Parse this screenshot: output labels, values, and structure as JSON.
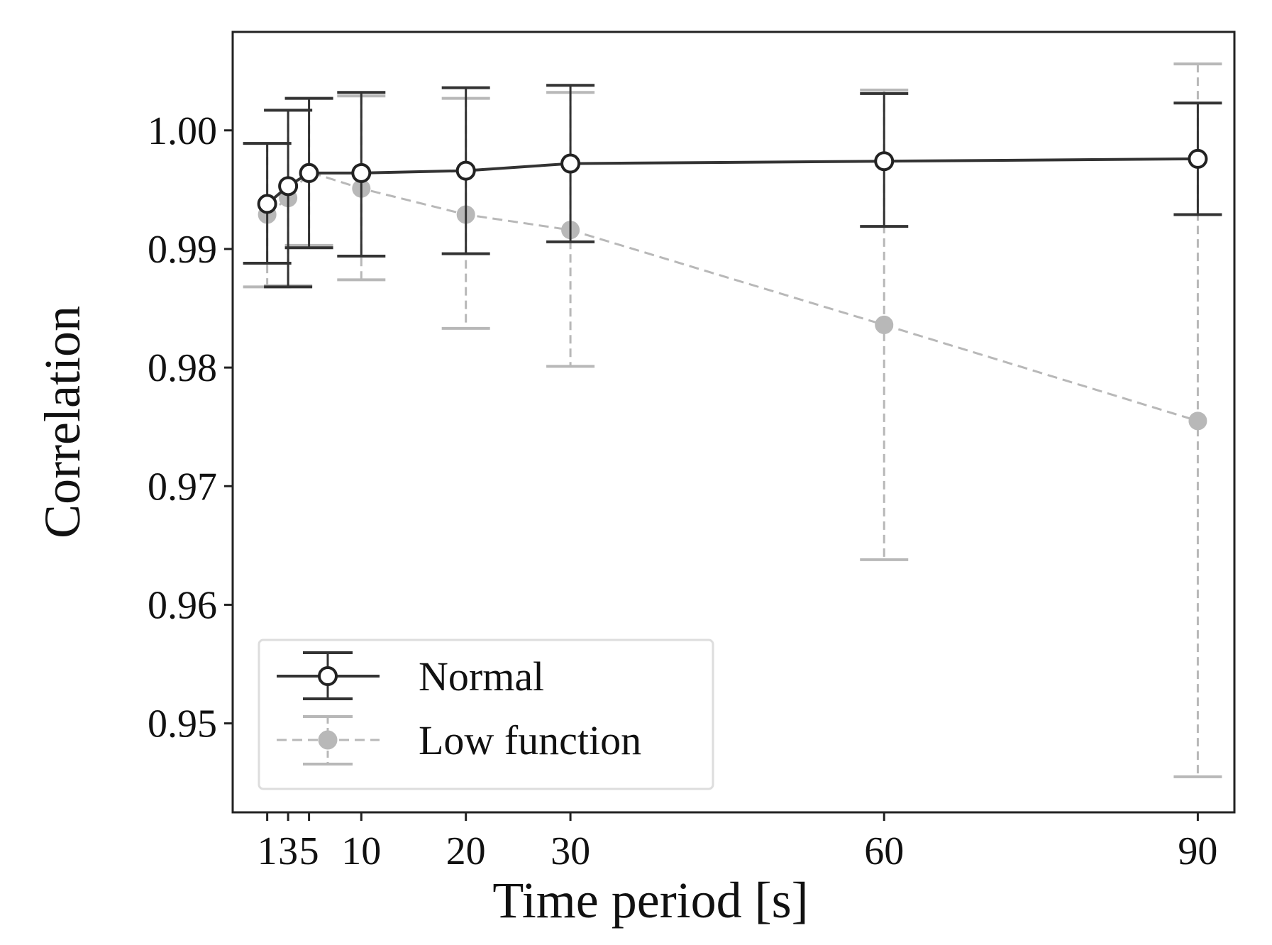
{
  "chart_data": {
    "type": "line",
    "xlabel": "Time period [s]",
    "ylabel": "Correlation",
    "x_ticks": [
      1,
      3,
      5,
      10,
      20,
      30,
      60,
      90
    ],
    "x_tick_labels": [
      "1",
      "3",
      "5",
      "10",
      "20",
      "30",
      "60",
      "90"
    ],
    "xlim": [
      -2.3,
      93.5
    ],
    "y_ticks": [
      0.95,
      0.96,
      0.97,
      0.98,
      0.99,
      1.0
    ],
    "y_tick_labels": [
      "0.95",
      "0.96",
      "0.97",
      "0.98",
      "0.99",
      "1.00"
    ],
    "ylim": [
      0.9425,
      1.0083
    ],
    "grid": false,
    "legend_position": "lower-left",
    "series": [
      {
        "name": "Normal",
        "style": "solid",
        "marker": "open-circle",
        "color": "#333333",
        "x": [
          1,
          3,
          5,
          10,
          20,
          30,
          60,
          90
        ],
        "y": [
          0.9938,
          0.9953,
          0.9964,
          0.9964,
          0.9966,
          0.9972,
          0.9974,
          0.9976
        ],
        "err_low": [
          0.9888,
          0.9868,
          0.9901,
          0.9894,
          0.9896,
          0.9906,
          0.9919,
          0.9929
        ],
        "err_high": [
          0.9989,
          1.0017,
          1.0027,
          1.0032,
          1.0036,
          1.0038,
          1.0031,
          1.0023
        ]
      },
      {
        "name": "Low function",
        "style": "dashed",
        "marker": "filled-circle",
        "color": "#b8b8b8",
        "x": [
          1,
          3,
          5,
          10,
          20,
          30,
          60,
          90
        ],
        "y": [
          0.9929,
          0.9943,
          0.9965,
          0.9951,
          0.9929,
          0.9916,
          0.9836,
          0.9755
        ],
        "err_low": [
          0.9868,
          0.9869,
          0.9903,
          0.9874,
          0.9833,
          0.9801,
          0.9638,
          0.9455
        ],
        "err_high": [
          0.9989,
          1.0017,
          1.0027,
          1.0029,
          1.0027,
          1.0032,
          1.0034,
          1.0056
        ]
      }
    ]
  }
}
